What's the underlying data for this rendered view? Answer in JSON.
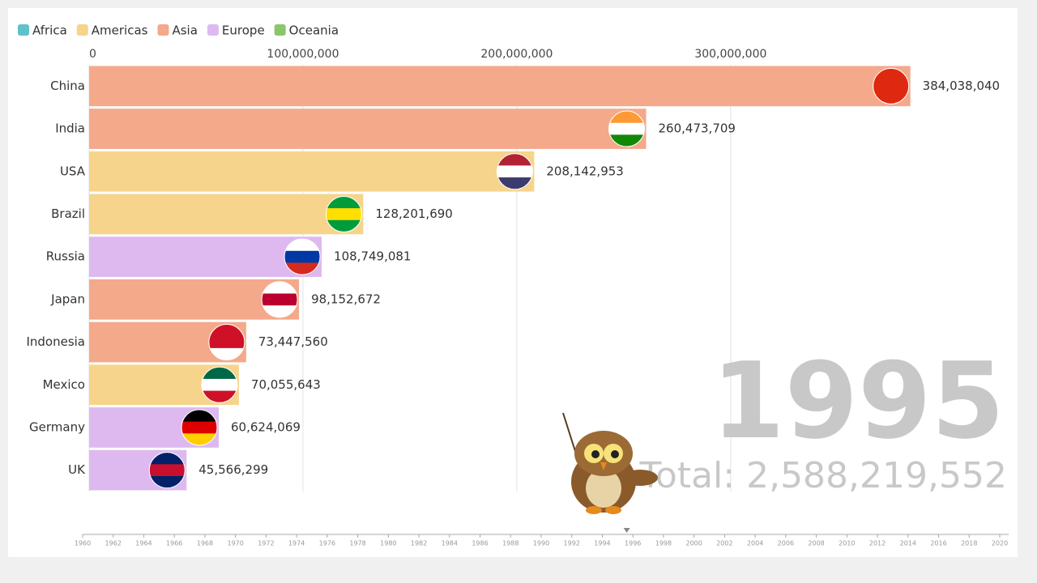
{
  "chart_data": {
    "type": "hbar",
    "legend": [
      {
        "name": "Africa",
        "color": "#5fc1cb"
      },
      {
        "name": "Americas",
        "color": "#f6d48b"
      },
      {
        "name": "Asia",
        "color": "#f4a98b"
      },
      {
        "name": "Europe",
        "color": "#ddb9f0"
      },
      {
        "name": "Oceania",
        "color": "#8bc66b"
      }
    ],
    "categories": [
      "China",
      "India",
      "USA",
      "Brazil",
      "Russia",
      "Japan",
      "Indonesia",
      "Mexico",
      "Germany",
      "UK"
    ],
    "values": [
      384038040,
      260473709,
      208142953,
      128201690,
      108749081,
      98152672,
      73447560,
      70055643,
      60624069,
      45566299
    ],
    "value_labels": [
      "384,038,040",
      "260,473,709",
      "208,142,953",
      "128,201,690",
      "108,749,081",
      "98,152,672",
      "73,447,560",
      "70,055,643",
      "60,624,069",
      "45,566,299"
    ],
    "colors": [
      "#f4a98b",
      "#f4a98b",
      "#f6d48b",
      "#f6d48b",
      "#ddb9f0",
      "#f4a98b",
      "#f4a98b",
      "#f6d48b",
      "#ddb9f0",
      "#ddb9f0"
    ],
    "xlim": [
      0,
      430000000
    ],
    "xticks": [
      0,
      {
        "value": 100000000,
        "label": "100,000,000"
      },
      {
        "value": 200000000,
        "label": "200,000,000"
      },
      {
        "value": 300000000,
        "label": "300,000,000"
      }
    ],
    "grid": true,
    "year": 1995,
    "total": "Total: 2,588,219,552",
    "timeline_lim": [
      1960,
      2020
    ],
    "timeline_ticks": [
      1960,
      1962,
      1964,
      1966,
      1968,
      1970,
      1972,
      1974,
      1976,
      1978,
      1980,
      1982,
      1984,
      1986,
      1988,
      1990,
      1992,
      1994,
      1996,
      1998,
      2000,
      2002,
      2004,
      2006,
      2008,
      2010,
      2012,
      2014,
      2016,
      2018,
      2020
    ],
    "timeline_position": 1995.6
  }
}
